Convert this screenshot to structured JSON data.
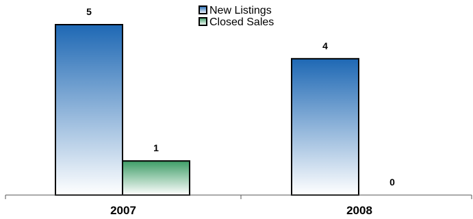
{
  "chart_data": {
    "type": "bar",
    "title": "",
    "xlabel": "",
    "ylabel": "",
    "categories": [
      "2007",
      "2008"
    ],
    "series": [
      {
        "name": "New Listings",
        "values": [
          5,
          4
        ],
        "color_top": "#1e68b4",
        "color_bottom": "#ffffff"
      },
      {
        "name": "Closed Sales",
        "values": [
          1,
          0
        ],
        "color_top": "#3e9d67",
        "color_bottom": "#ffffff"
      }
    ],
    "ylim": [
      0,
      5
    ],
    "grid": false,
    "legend_position": "top-center",
    "data_labels": true
  }
}
